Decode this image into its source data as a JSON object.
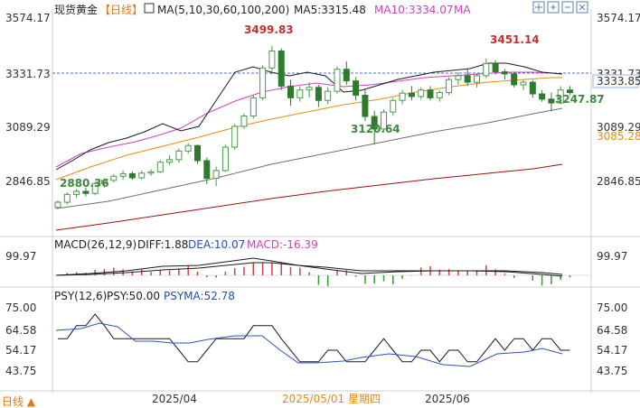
{
  "header": {
    "instrument": "现货黄金",
    "period_tag": "【日线】",
    "ma_label": "MA(5,10,30,60,100,200)",
    "ma5_label": "MA5:3315.48",
    "ma10_label": "MA10:3334.07",
    "ma_more": "MA",
    "colors": {
      "ma5": "#000000",
      "ma10": "#d040c0",
      "ma30": "#e88a10",
      "ma60": "#707070",
      "ma100": "#9a1010",
      "ma200": "#1a1a1a"
    },
    "toolbar_icons": [
      "move-icon",
      "zoom-in-icon",
      "zoom-out-icon",
      "reset-icon",
      "panel-icon",
      "settings-icon"
    ]
  },
  "price_axis": {
    "ticks": [
      "3574.17",
      "3331.73",
      "3089.29",
      "2846.85"
    ],
    "current_price": "3333.85",
    "ma_tag": "3085.28"
  },
  "annotations": {
    "high1": "3499.83",
    "high2": "3451.14",
    "low1": "2880.36",
    "low2": "3120.64",
    "low3": "3247.87"
  },
  "macd": {
    "label": "MACD(26,12,9)",
    "diff": "DIFF:1.88",
    "dea": "DEA:10.07",
    "macd": "MACD:-16.39",
    "tick": "99.97"
  },
  "psy": {
    "label": "PSY(12,6)",
    "psy": "PSY:50.00",
    "psyma": "PSYMA:52.78",
    "ticks": [
      "75.00",
      "64.58",
      "54.17",
      "43.75"
    ]
  },
  "x_axis": {
    "labels": [
      "2025/04",
      "2025/05/01 星期四",
      "2025/06"
    ],
    "period": "日线 ▲"
  },
  "chart_data": {
    "type": "candlestick",
    "series_count": 56,
    "ohlc": [
      [
        2878,
        2905,
        2872,
        2898
      ],
      [
        2898,
        2936,
        2890,
        2928
      ],
      [
        2928,
        2948,
        2915,
        2940
      ],
      [
        2940,
        2955,
        2920,
        2932
      ],
      [
        2932,
        2978,
        2925,
        2970
      ],
      [
        2970,
        2990,
        2955,
        2982
      ],
      [
        2982,
        3006,
        2975,
        2998
      ],
      [
        2998,
        3020,
        2985,
        3008
      ],
      [
        3008,
        3016,
        2985,
        2992
      ],
      [
        2992,
        3020,
        2984,
        3010
      ],
      [
        3010,
        3025,
        3000,
        3015
      ],
      [
        3015,
        3060,
        3010,
        3052
      ],
      [
        3052,
        3080,
        3040,
        3062
      ],
      [
        3062,
        3105,
        3050,
        3095
      ],
      [
        3095,
        3125,
        3085,
        3116
      ],
      [
        3116,
        3120,
        3045,
        3058
      ],
      [
        3058,
        3070,
        2968,
        2990
      ],
      [
        2990,
        3035,
        2960,
        3020
      ],
      [
        3020,
        3120,
        3015,
        3110
      ],
      [
        3110,
        3200,
        3100,
        3190
      ],
      [
        3190,
        3240,
        3180,
        3230
      ],
      [
        3230,
        3310,
        3220,
        3300
      ],
      [
        3300,
        3425,
        3290,
        3415
      ],
      [
        3415,
        3500,
        3390,
        3480
      ],
      [
        3480,
        3490,
        3330,
        3345
      ],
      [
        3345,
        3370,
        3270,
        3300
      ],
      [
        3300,
        3345,
        3285,
        3330
      ],
      [
        3330,
        3360,
        3300,
        3340
      ],
      [
        3340,
        3350,
        3265,
        3290
      ],
      [
        3290,
        3340,
        3275,
        3325
      ],
      [
        3325,
        3420,
        3315,
        3410
      ],
      [
        3410,
        3440,
        3350,
        3365
      ],
      [
        3365,
        3380,
        3290,
        3310
      ],
      [
        3310,
        3330,
        3210,
        3228
      ],
      [
        3228,
        3250,
        3120,
        3180
      ],
      [
        3180,
        3255,
        3170,
        3245
      ],
      [
        3245,
        3300,
        3230,
        3290
      ],
      [
        3290,
        3330,
        3275,
        3318
      ],
      [
        3318,
        3345,
        3290,
        3305
      ],
      [
        3305,
        3340,
        3295,
        3330
      ],
      [
        3330,
        3345,
        3290,
        3300
      ],
      [
        3300,
        3330,
        3285,
        3320
      ],
      [
        3320,
        3380,
        3310,
        3370
      ],
      [
        3370,
        3400,
        3350,
        3385
      ],
      [
        3385,
        3410,
        3345,
        3360
      ],
      [
        3360,
        3395,
        3340,
        3385
      ],
      [
        3385,
        3451,
        3375,
        3432
      ],
      [
        3432,
        3445,
        3390,
        3400
      ],
      [
        3400,
        3410,
        3370,
        3392
      ],
      [
        3392,
        3400,
        3340,
        3350
      ],
      [
        3350,
        3370,
        3330,
        3360
      ],
      [
        3360,
        3368,
        3300,
        3315
      ],
      [
        3315,
        3330,
        3285,
        3295
      ],
      [
        3295,
        3320,
        3248,
        3280
      ],
      [
        3280,
        3345,
        3275,
        3330
      ],
      [
        3330,
        3345,
        3310,
        3320
      ]
    ],
    "price_range": [
      2780,
      3600
    ],
    "psy_values": [
      58,
      58,
      67,
      67,
      75,
      67,
      58,
      58,
      58,
      58,
      58,
      58,
      58,
      50,
      42,
      42,
      50,
      58,
      58,
      58,
      58,
      67,
      67,
      67,
      58,
      50,
      42,
      42,
      42,
      50,
      50,
      42,
      42,
      42,
      50,
      58,
      50,
      42,
      42,
      50,
      50,
      42,
      50,
      50,
      42,
      42,
      50,
      58,
      50,
      58,
      58,
      50,
      58,
      58,
      50,
      50
    ],
    "psy_range": [
      35,
      80
    ],
    "x_labels": [
      "2025/04",
      "2025/05/01",
      "2025/06"
    ],
    "grid": true
  }
}
